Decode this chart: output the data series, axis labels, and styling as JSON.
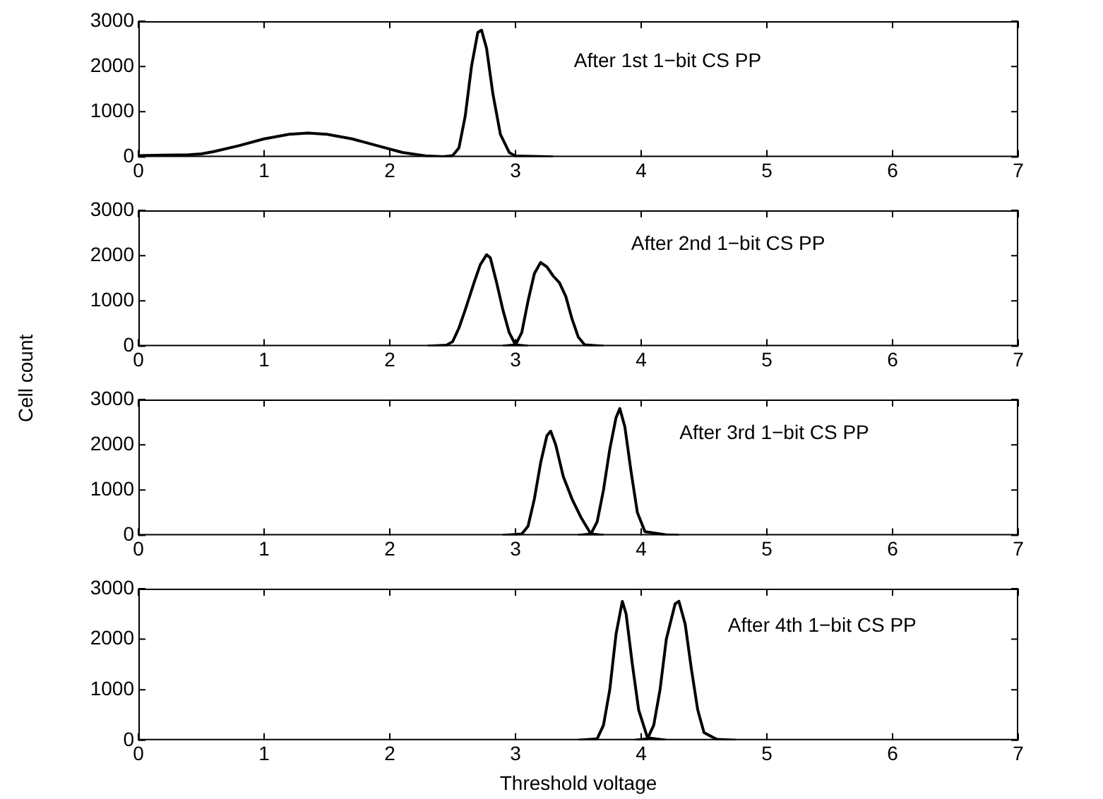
{
  "chart_data": [
    {
      "type": "line",
      "annotations": [
        "After 1st 1−bit CS PP"
      ],
      "xlim": [
        0,
        7
      ],
      "xticks": [
        0,
        1,
        2,
        3,
        4,
        5,
        6,
        7
      ],
      "ylim": [
        0,
        3000
      ],
      "yticks": [
        0,
        1000,
        2000,
        3000
      ],
      "grid": false,
      "legend": false,
      "marker": "none",
      "line_style": "solid",
      "series": [
        {
          "color": "#000000",
          "x": [
            0,
            0.2,
            0.4,
            0.5,
            0.6,
            0.8,
            1.0,
            1.2,
            1.35,
            1.5,
            1.7,
            1.9,
            2.1,
            2.3,
            2.5
          ],
          "values": [
            30,
            40,
            50,
            70,
            120,
            250,
            400,
            500,
            530,
            500,
            400,
            250,
            100,
            20,
            0
          ]
        },
        {
          "color": "#000000",
          "x": [
            2.4,
            2.5,
            2.55,
            2.6,
            2.65,
            2.7,
            2.73,
            2.77,
            2.82,
            2.88,
            2.95,
            3.0,
            3.2,
            3.3
          ],
          "values": [
            0,
            30,
            200,
            900,
            2000,
            2750,
            2800,
            2400,
            1400,
            500,
            100,
            20,
            10,
            0
          ]
        }
      ]
    },
    {
      "type": "line",
      "annotations": [
        "After 2nd 1−bit CS PP"
      ],
      "xlim": [
        0,
        7
      ],
      "xticks": [
        0,
        1,
        2,
        3,
        4,
        5,
        6,
        7
      ],
      "ylim": [
        0,
        3000
      ],
      "yticks": [
        0,
        1000,
        2000,
        3000
      ],
      "grid": false,
      "legend": false,
      "marker": "none",
      "line_style": "solid",
      "ylabel": "Cell count",
      "series": [
        {
          "color": "#000000",
          "x": [
            2.3,
            2.45,
            2.5,
            2.55,
            2.6,
            2.67,
            2.72,
            2.77,
            2.8,
            2.85,
            2.9,
            2.95,
            3.0,
            3.1
          ],
          "values": [
            0,
            20,
            100,
            400,
            800,
            1400,
            1800,
            2020,
            1950,
            1400,
            800,
            300,
            30,
            0
          ]
        },
        {
          "color": "#000000",
          "x": [
            2.9,
            3.0,
            3.05,
            3.1,
            3.15,
            3.2,
            3.25,
            3.3,
            3.35,
            3.4,
            3.45,
            3.5,
            3.55,
            3.7
          ],
          "values": [
            0,
            30,
            300,
            1000,
            1600,
            1850,
            1750,
            1550,
            1400,
            1100,
            600,
            200,
            30,
            0
          ]
        }
      ]
    },
    {
      "type": "line",
      "annotations": [
        "After 3rd 1−bit CS PP"
      ],
      "xlim": [
        0,
        7
      ],
      "xticks": [
        0,
        1,
        2,
        3,
        4,
        5,
        6,
        7
      ],
      "ylim": [
        0,
        3000
      ],
      "yticks": [
        0,
        1000,
        2000,
        3000
      ],
      "grid": false,
      "legend": false,
      "marker": "none",
      "line_style": "solid",
      "series": [
        {
          "color": "#000000",
          "x": [
            2.9,
            3.05,
            3.1,
            3.15,
            3.2,
            3.25,
            3.28,
            3.32,
            3.38,
            3.45,
            3.52,
            3.6,
            3.7
          ],
          "values": [
            0,
            30,
            200,
            800,
            1600,
            2200,
            2300,
            2000,
            1300,
            800,
            400,
            30,
            0
          ]
        },
        {
          "color": "#000000",
          "x": [
            3.5,
            3.6,
            3.65,
            3.7,
            3.75,
            3.8,
            3.83,
            3.87,
            3.92,
            3.97,
            4.03,
            4.2,
            4.3
          ],
          "values": [
            0,
            30,
            300,
            1000,
            1900,
            2600,
            2800,
            2400,
            1400,
            500,
            80,
            10,
            0
          ]
        }
      ]
    },
    {
      "type": "line",
      "annotations": [
        "After 4th 1−bit CS PP"
      ],
      "xlim": [
        0,
        7
      ],
      "xticks": [
        0,
        1,
        2,
        3,
        4,
        5,
        6,
        7
      ],
      "ylim": [
        0,
        3000
      ],
      "yticks": [
        0,
        1000,
        2000,
        3000
      ],
      "grid": false,
      "legend": false,
      "marker": "none",
      "line_style": "solid",
      "xlabel": "Threshold voltage",
      "series": [
        {
          "color": "#000000",
          "x": [
            3.5,
            3.65,
            3.7,
            3.75,
            3.8,
            3.85,
            3.88,
            3.93,
            3.98,
            4.05,
            4.2
          ],
          "values": [
            0,
            30,
            300,
            1000,
            2100,
            2750,
            2500,
            1500,
            600,
            50,
            0
          ]
        },
        {
          "color": "#000000",
          "x": [
            3.95,
            4.05,
            4.1,
            4.15,
            4.2,
            4.27,
            4.3,
            4.35,
            4.4,
            4.45,
            4.5,
            4.6,
            4.75
          ],
          "values": [
            0,
            30,
            300,
            1000,
            2000,
            2700,
            2750,
            2300,
            1400,
            600,
            150,
            20,
            0
          ]
        }
      ]
    }
  ]
}
